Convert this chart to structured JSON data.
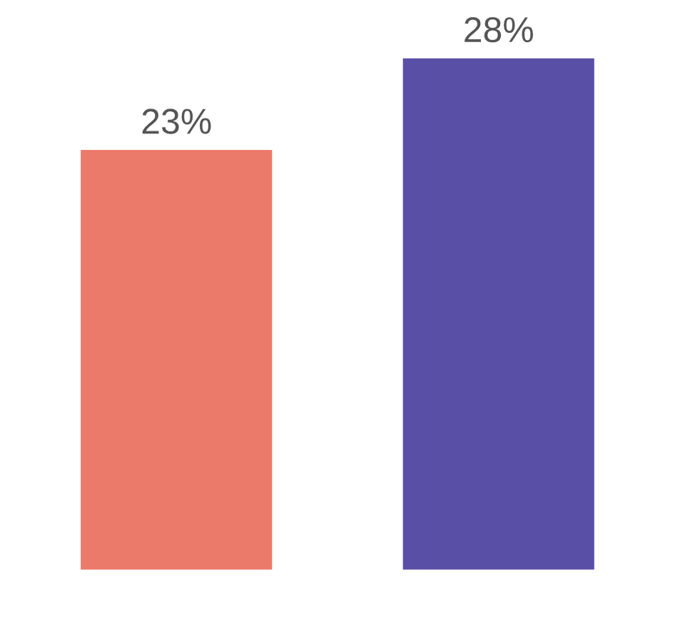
{
  "chart_data": {
    "type": "bar",
    "categories": [
      null,
      null
    ],
    "values": [
      23,
      28
    ],
    "colors": [
      "#ec7a6a",
      "#5a4fa6"
    ],
    "value_labels": [
      "23%",
      "28%"
    ]
  }
}
